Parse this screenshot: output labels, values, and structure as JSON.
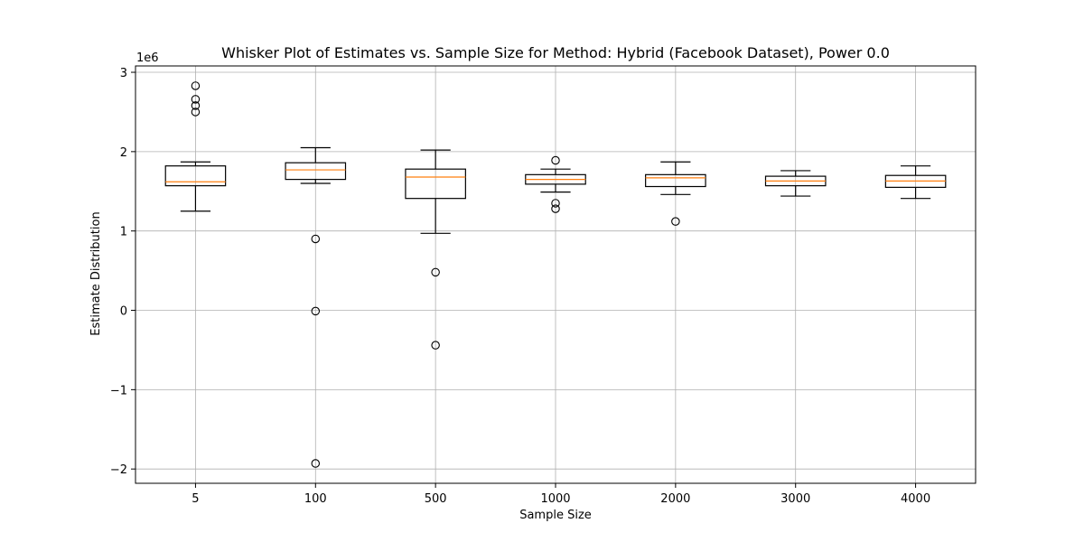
{
  "chart_data": {
    "type": "box",
    "title": "Whisker Plot of Estimates vs. Sample Size for Method: Hybrid (Facebook Dataset), Power 0.0",
    "xlabel": "Sample Size",
    "ylabel": "Estimate Distribution",
    "y_offset_label": "1e6",
    "ylim": [
      -2.18,
      3.08
    ],
    "y_ticks": [
      -2,
      -1,
      0,
      1,
      2,
      3
    ],
    "y_tick_labels": [
      "−2",
      "−1",
      "0",
      "1",
      "2",
      "3"
    ],
    "grid": true,
    "categories": [
      "5",
      "100",
      "500",
      "1000",
      "2000",
      "3000",
      "4000"
    ],
    "boxes": [
      {
        "category": "5",
        "whisker_low": 1.25,
        "q1": 1.57,
        "median": 1.62,
        "q3": 1.82,
        "whisker_high": 1.87,
        "outliers": [
          2.83,
          2.66,
          2.58,
          2.5
        ]
      },
      {
        "category": "100",
        "whisker_low": 1.6,
        "q1": 1.65,
        "median": 1.77,
        "q3": 1.86,
        "whisker_high": 2.05,
        "outliers": [
          0.9,
          -0.01,
          -1.93
        ]
      },
      {
        "category": "500",
        "whisker_low": 0.97,
        "q1": 1.41,
        "median": 1.68,
        "q3": 1.78,
        "whisker_high": 2.02,
        "outliers": [
          0.48,
          -0.44
        ]
      },
      {
        "category": "1000",
        "whisker_low": 1.49,
        "q1": 1.59,
        "median": 1.65,
        "q3": 1.71,
        "whisker_high": 1.78,
        "outliers": [
          1.89,
          1.35,
          1.28
        ]
      },
      {
        "category": "2000",
        "whisker_low": 1.46,
        "q1": 1.56,
        "median": 1.67,
        "q3": 1.71,
        "whisker_high": 1.87,
        "outliers": [
          1.12
        ]
      },
      {
        "category": "3000",
        "whisker_low": 1.44,
        "q1": 1.57,
        "median": 1.63,
        "q3": 1.69,
        "whisker_high": 1.76,
        "outliers": []
      },
      {
        "category": "4000",
        "whisker_low": 1.41,
        "q1": 1.55,
        "median": 1.63,
        "q3": 1.7,
        "whisker_high": 1.82,
        "outliers": []
      }
    ],
    "colors": {
      "box": "#000000",
      "median": "#ff7f0e",
      "grid": "#b0b0b0"
    }
  }
}
